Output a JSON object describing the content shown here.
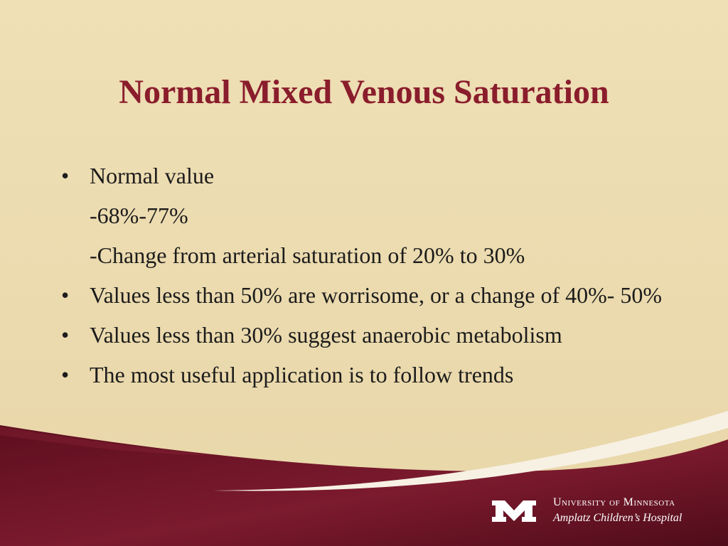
{
  "slide": {
    "title": "Normal Mixed Venous Saturation",
    "bullets": [
      {
        "type": "bullet",
        "text": "Normal value"
      },
      {
        "type": "sub",
        "text": "-68%-77%"
      },
      {
        "type": "sub",
        "text": "-Change from arterial saturation of 20% to 30%"
      },
      {
        "type": "bullet",
        "text": "Values less than 50% are worrisome, or a change of 40%- 50%"
      },
      {
        "type": "bullet",
        "text": "Values less than 30% suggest anaerobic metabolism"
      },
      {
        "type": "bullet",
        "text": "The most useful application is to follow trends"
      }
    ]
  },
  "footer": {
    "institution": "University of Minnesota",
    "hospital": "Amplatz Children’s Hospital",
    "logo_icon": "university-m-logo"
  },
  "colors": {
    "background": "#ecdcb0",
    "title": "#8a1d2c",
    "band": "#6e1426",
    "text": "#1c1c1c"
  }
}
